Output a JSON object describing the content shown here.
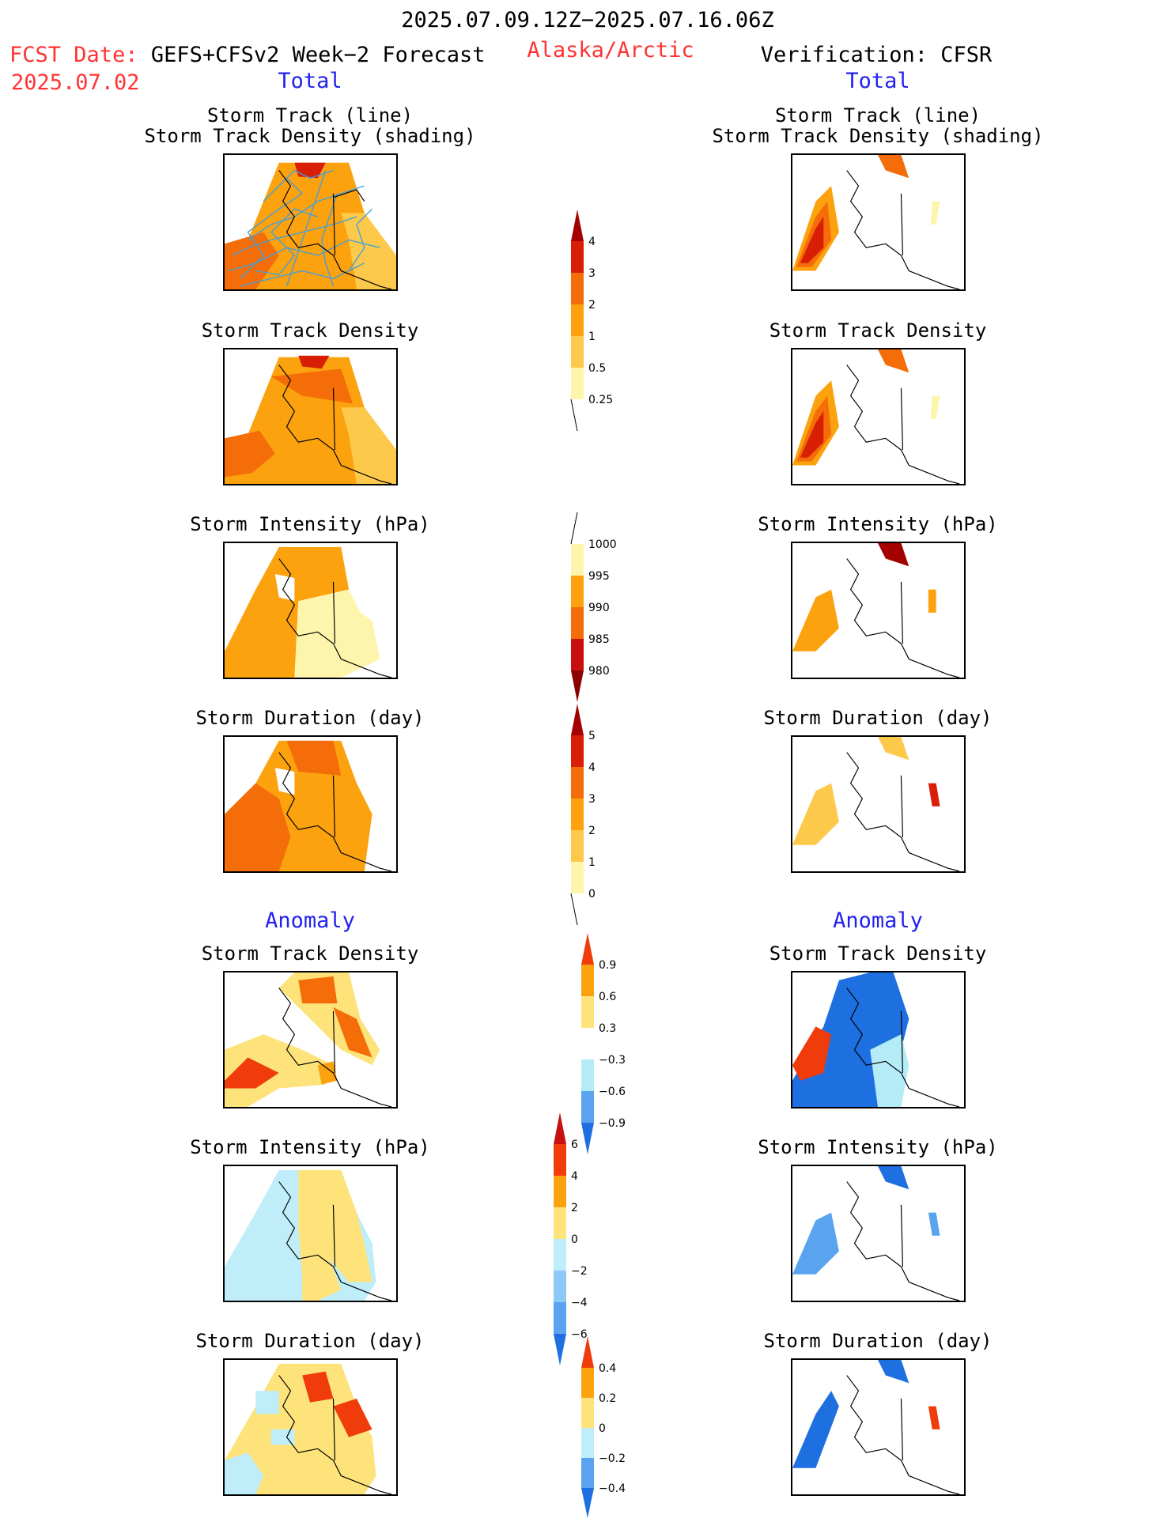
{
  "header": {
    "valid_period": "2025.07.09.12Z−2025.07.16.06Z",
    "fcst_label": "FCST Date:",
    "model": "GEFS+CFSv2 Week−2 Forecast",
    "fcst_date": "2025.07.02",
    "region": "Alaska/Arctic",
    "verification": "Verification: CFSR"
  },
  "sections": {
    "total": "Total",
    "anomaly": "Anomaly"
  },
  "panel_titles": {
    "track_line": "Storm Track (line)",
    "track_density_shading": "Storm Track Density (shading)",
    "track_density": "Storm Track Density",
    "intensity": "Storm Intensity (hPa)",
    "duration": "Storm Duration (day)"
  },
  "colorbars": {
    "density_total": {
      "labels": [
        "4",
        "3",
        "2",
        "1",
        "0.5",
        "0.25"
      ],
      "colors": [
        "#a50000",
        "#d81e05",
        "#f46d08",
        "#fca20f",
        "#fdc94a",
        "#fef5ad"
      ]
    },
    "intensity_total": {
      "labels": [
        "1000",
        "995",
        "990",
        "985",
        "980"
      ],
      "colors": [
        "#fef5ad",
        "#fca20f",
        "#f46d08",
        "#c81010",
        "#8b0000"
      ]
    },
    "duration_total": {
      "labels": [
        "5",
        "4",
        "3",
        "2",
        "1",
        "0"
      ],
      "colors": [
        "#a50000",
        "#d81e05",
        "#f46d08",
        "#fca20f",
        "#fdc94a",
        "#fef5ad"
      ]
    },
    "density_anom": {
      "labels": [
        "0.9",
        "0.6",
        "0.3",
        "−0.3",
        "−0.6",
        "−0.9"
      ],
      "colors": [
        "#f03c0a",
        "#fca20f",
        "#fde37a",
        "#ffffff",
        "#b3ecf7",
        "#5aa4ef",
        "#1e6fe0"
      ]
    },
    "intensity_anom": {
      "labels": [
        "6",
        "4",
        "2",
        "0",
        "−2",
        "−4",
        "−6"
      ],
      "colors": [
        "#c81010",
        "#f03c0a",
        "#fca20f",
        "#fde37a",
        "#bfeefa",
        "#8ccaf5",
        "#5aa4ef",
        "#1e6fe0"
      ]
    },
    "duration_anom": {
      "labels": [
        "0.4",
        "0.2",
        "0",
        "−0.2",
        "−0.4"
      ],
      "colors": [
        "#f03c0a",
        "#fca20f",
        "#fde37a",
        "#bfeefa",
        "#5aa4ef",
        "#1e6fe0"
      ]
    }
  },
  "colors": {
    "title_red": "#ff3333",
    "section_blue": "#2222ee",
    "track_line": "#3b9fe0"
  }
}
